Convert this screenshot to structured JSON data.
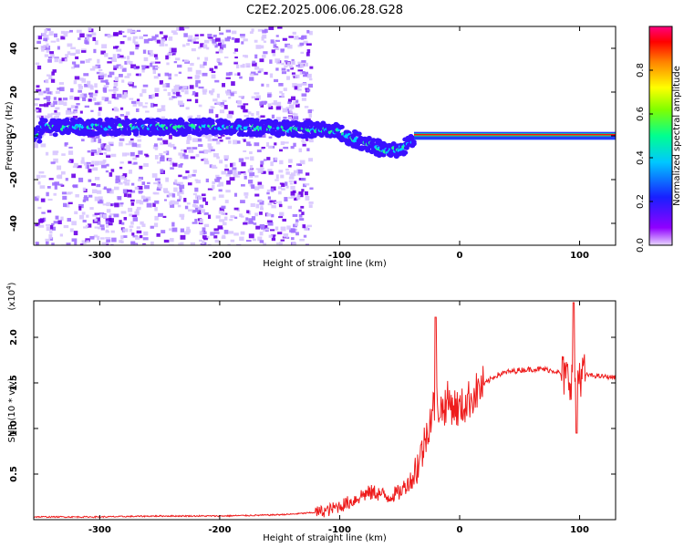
{
  "title": "C2E2.2025.006.06.28.G28",
  "colors": {
    "snr_line": "#ee1c1c",
    "track_center": "#ff1010",
    "track_outer": "#3050ff",
    "scatter": "#8a2be2"
  },
  "chart_data": [
    {
      "type": "heatmap",
      "xlabel": "Height of straight line (km)",
      "ylabel": "Frequency (Hz)",
      "xlim": [
        -355,
        130
      ],
      "ylim": [
        -50,
        50
      ],
      "x_ticks": [
        -300,
        -200,
        -100,
        0,
        100
      ],
      "y_ticks": [
        -40,
        -20,
        0,
        20,
        40
      ],
      "colorbar": {
        "label": "Normalized spectral amplitude",
        "range": [
          0,
          1
        ],
        "ticks": [
          0.0,
          0.2,
          0.4,
          0.6,
          0.8
        ],
        "colormap": [
          "#8000ff",
          "#2030ff",
          "#00c8ff",
          "#00ff80",
          "#80ff00",
          "#ffff00",
          "#ff8000",
          "#ff0000",
          "#ff0080"
        ]
      },
      "track": {
        "x": [
          -350,
          -320,
          -300,
          -280,
          -260,
          -240,
          -220,
          -200,
          -180,
          -160,
          -140,
          -120,
          -100,
          -90,
          -80,
          -70,
          -60,
          -50,
          -40,
          -35,
          -30,
          -20,
          -10,
          0,
          20,
          40,
          60,
          80,
          95,
          100,
          130
        ],
        "y": [
          4,
          4,
          4,
          4,
          4,
          4,
          4,
          4,
          4,
          3.5,
          3,
          3,
          2,
          -1,
          -3,
          -5,
          -7,
          -6,
          -3,
          0.8,
          0.8,
          0.8,
          0.8,
          0.5,
          0.5,
          0.5,
          0.5,
          0.5,
          0.5,
          0.5,
          0.5
        ]
      }
    },
    {
      "type": "line",
      "xlabel": "Height of straight line (km)",
      "ylabel": "SNR (10 * v/v)",
      "y_multiplier": "(x10",
      "y_multiplier_exp": "4",
      "y_multiplier_close": ")",
      "xlim": [
        -355,
        130
      ],
      "ylim": [
        0,
        2.4
      ],
      "x_ticks": [
        -300,
        -200,
        -100,
        0,
        100
      ],
      "y_ticks": [
        0.5,
        1.0,
        1.5,
        2.0
      ],
      "series": [
        {
          "x": [
            -355,
            -300,
            -250,
            -200,
            -160,
            -140,
            -120,
            -110,
            -100,
            -90,
            -80,
            -70,
            -60,
            -50,
            -40,
            -35,
            -30,
            -25,
            -20,
            -15,
            -10,
            0,
            10,
            20,
            30,
            40,
            50,
            60,
            70,
            80,
            90,
            100,
            110,
            120,
            130
          ],
          "values": [
            0.03,
            0.03,
            0.04,
            0.04,
            0.05,
            0.06,
            0.08,
            0.1,
            0.15,
            0.2,
            0.28,
            0.3,
            0.25,
            0.3,
            0.45,
            0.6,
            0.8,
            1.1,
            1.3,
            1.2,
            1.3,
            1.2,
            1.35,
            1.48,
            1.58,
            1.62,
            1.64,
            1.65,
            1.65,
            1.63,
            1.55,
            1.6,
            1.58,
            1.57,
            1.56
          ]
        }
      ]
    }
  ]
}
